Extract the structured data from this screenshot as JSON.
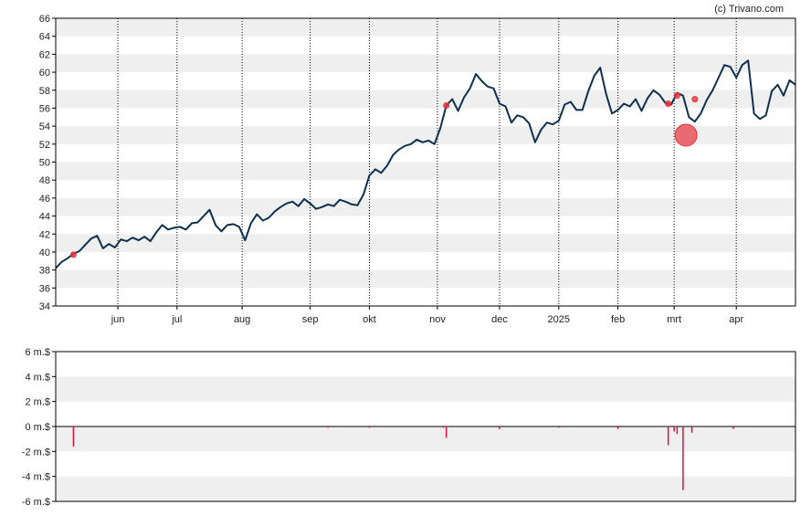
{
  "credit": "(c) Trivano.com",
  "colors": {
    "price_line": "#0d3050",
    "bars": "#dc143c",
    "marker": "#e8323c",
    "band": "#efefef",
    "grid": "#000000"
  },
  "chart_data": [
    {
      "type": "line",
      "title": "",
      "xlabel": "",
      "ylabel": "",
      "ylim": [
        34,
        66
      ],
      "yticks": [
        34,
        36,
        38,
        40,
        42,
        44,
        46,
        48,
        50,
        52,
        54,
        56,
        58,
        60,
        62,
        64,
        66
      ],
      "xlim": [
        0,
        250
      ],
      "xticks": [
        {
          "label": "jun",
          "x": 21
        },
        {
          "label": "jul",
          "x": 41
        },
        {
          "label": "aug",
          "x": 63
        },
        {
          "label": "sep",
          "x": 86
        },
        {
          "label": "okt",
          "x": 106
        },
        {
          "label": "nov",
          "x": 129
        },
        {
          "label": "dec",
          "x": 150
        },
        {
          "label": "2025",
          "x": 170
        },
        {
          "label": "feb",
          "x": 190
        },
        {
          "label": "mrt",
          "x": 209
        },
        {
          "label": "apr",
          "x": 230
        }
      ],
      "grid": true,
      "series": [
        {
          "points": [
            [
              0,
              38.2
            ],
            [
              2,
              38.9
            ],
            [
              4,
              39.3
            ],
            [
              6,
              39.8
            ],
            [
              8,
              40.1
            ],
            [
              10,
              40.8
            ],
            [
              12,
              41.5
            ],
            [
              14,
              41.8
            ],
            [
              16,
              40.4
            ],
            [
              18,
              40.9
            ],
            [
              20,
              40.5
            ],
            [
              22,
              41.4
            ],
            [
              24,
              41.2
            ],
            [
              26,
              41.6
            ],
            [
              28,
              41.3
            ],
            [
              30,
              41.7
            ],
            [
              32,
              41.2
            ],
            [
              34,
              42.2
            ],
            [
              36,
              43.0
            ],
            [
              38,
              42.5
            ],
            [
              40,
              42.7
            ],
            [
              42,
              42.8
            ],
            [
              44,
              42.5
            ],
            [
              46,
              43.2
            ],
            [
              48,
              43.3
            ],
            [
              50,
              44.0
            ],
            [
              52,
              44.7
            ],
            [
              54,
              43.0
            ],
            [
              56,
              42.3
            ],
            [
              58,
              43.0
            ],
            [
              60,
              43.1
            ],
            [
              62,
              42.8
            ],
            [
              64,
              41.3
            ],
            [
              66,
              43.2
            ],
            [
              68,
              44.2
            ],
            [
              70,
              43.5
            ],
            [
              72,
              43.8
            ],
            [
              74,
              44.5
            ],
            [
              76,
              45.0
            ],
            [
              78,
              45.4
            ],
            [
              80,
              45.6
            ],
            [
              82,
              45.1
            ],
            [
              84,
              45.9
            ],
            [
              86,
              45.4
            ],
            [
              88,
              44.8
            ],
            [
              90,
              45.0
            ],
            [
              92,
              45.3
            ],
            [
              94,
              45.1
            ],
            [
              96,
              45.8
            ],
            [
              98,
              45.6
            ],
            [
              100,
              45.3
            ],
            [
              102,
              45.2
            ],
            [
              104,
              46.4
            ],
            [
              106,
              48.5
            ],
            [
              108,
              49.2
            ],
            [
              110,
              48.8
            ],
            [
              112,
              49.6
            ],
            [
              114,
              50.8
            ],
            [
              116,
              51.4
            ],
            [
              118,
              51.8
            ],
            [
              120,
              52.0
            ],
            [
              122,
              52.5
            ],
            [
              124,
              52.2
            ],
            [
              126,
              52.4
            ],
            [
              128,
              52.0
            ],
            [
              130,
              53.8
            ],
            [
              132,
              56.3
            ],
            [
              134,
              57.0
            ],
            [
              136,
              55.7
            ],
            [
              138,
              57.2
            ],
            [
              140,
              58.2
            ],
            [
              142,
              59.8
            ],
            [
              144,
              59.0
            ],
            [
              146,
              58.4
            ],
            [
              148,
              58.2
            ],
            [
              150,
              56.5
            ],
            [
              152,
              56.2
            ],
            [
              154,
              54.4
            ],
            [
              156,
              55.2
            ],
            [
              158,
              55.0
            ],
            [
              160,
              54.3
            ],
            [
              162,
              52.2
            ],
            [
              164,
              53.6
            ],
            [
              166,
              54.4
            ],
            [
              168,
              54.2
            ],
            [
              170,
              54.6
            ],
            [
              172,
              56.4
            ],
            [
              174,
              56.7
            ],
            [
              176,
              55.8
            ],
            [
              178,
              55.8
            ],
            [
              180,
              57.9
            ],
            [
              182,
              59.6
            ],
            [
              184,
              60.5
            ],
            [
              186,
              57.6
            ],
            [
              188,
              55.4
            ],
            [
              190,
              55.8
            ],
            [
              192,
              56.5
            ],
            [
              194,
              56.2
            ],
            [
              196,
              57.0
            ],
            [
              198,
              55.7
            ],
            [
              200,
              57.1
            ],
            [
              202,
              58.0
            ],
            [
              204,
              57.5
            ],
            [
              206,
              56.6
            ],
            [
              208,
              56.4
            ],
            [
              210,
              57.7
            ],
            [
              212,
              57.4
            ],
            [
              214,
              55.0
            ],
            [
              216,
              54.5
            ],
            [
              218,
              55.4
            ],
            [
              220,
              56.9
            ],
            [
              222,
              58.0
            ],
            [
              224,
              59.4
            ],
            [
              226,
              60.8
            ],
            [
              228,
              60.6
            ],
            [
              230,
              59.4
            ],
            [
              232,
              60.8
            ],
            [
              234,
              61.3
            ],
            [
              236,
              55.4
            ],
            [
              238,
              54.8
            ],
            [
              240,
              55.2
            ],
            [
              242,
              57.9
            ],
            [
              244,
              58.6
            ],
            [
              246,
              57.4
            ],
            [
              248,
              59.1
            ],
            [
              250,
              58.6
            ]
          ]
        }
      ],
      "markers": [
        {
          "x": 6,
          "y": 39.7,
          "size": "small"
        },
        {
          "x": 132,
          "y": 56.3,
          "size": "small"
        },
        {
          "x": 207,
          "y": 56.5,
          "size": "small"
        },
        {
          "x": 210,
          "y": 57.4,
          "size": "small"
        },
        {
          "x": 213,
          "y": 53.0,
          "size": "large"
        },
        {
          "x": 216,
          "y": 57.0,
          "size": "small"
        }
      ]
    },
    {
      "type": "bar",
      "title": "",
      "xlabel": "",
      "ylabel": "",
      "ylim": [
        -6,
        6
      ],
      "yticks": [
        {
          "label": "6 m.$",
          "value": 6
        },
        {
          "label": "4 m.$",
          "value": 4
        },
        {
          "label": "2 m.$",
          "value": 2
        },
        {
          "label": "0 m.$",
          "value": 0
        },
        {
          "label": "-2 m.$",
          "value": -2
        },
        {
          "label": "-4 m.$",
          "value": -4
        },
        {
          "label": "-6 m.$",
          "value": -6
        }
      ],
      "xlim": [
        0,
        250
      ],
      "series": [
        {
          "x": [
            6,
            92,
            106,
            131,
            132,
            150,
            170,
            190,
            207,
            209,
            210,
            212,
            215,
            229
          ],
          "values": [
            -1.6,
            -0.1,
            -0.1,
            -0.1,
            -0.9,
            -0.2,
            -0.1,
            -0.2,
            -1.5,
            -0.4,
            -0.6,
            -5.1,
            -0.5,
            -0.2
          ]
        }
      ]
    }
  ]
}
